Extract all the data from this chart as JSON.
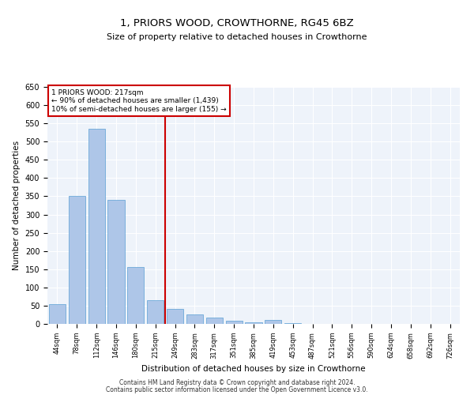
{
  "title1": "1, PRIORS WOOD, CROWTHORNE, RG45 6BZ",
  "title2": "Size of property relative to detached houses in Crowthorne",
  "xlabel": "Distribution of detached houses by size in Crowthorne",
  "ylabel": "Number of detached properties",
  "categories": [
    "44sqm",
    "78sqm",
    "112sqm",
    "146sqm",
    "180sqm",
    "215sqm",
    "249sqm",
    "283sqm",
    "317sqm",
    "351sqm",
    "385sqm",
    "419sqm",
    "453sqm",
    "487sqm",
    "521sqm",
    "556sqm",
    "590sqm",
    "624sqm",
    "658sqm",
    "692sqm",
    "726sqm"
  ],
  "values": [
    55,
    350,
    535,
    340,
    155,
    65,
    42,
    25,
    18,
    8,
    5,
    10,
    2,
    1,
    0,
    1,
    0,
    0,
    0,
    0,
    1
  ],
  "bar_color": "#aec6e8",
  "bar_edge_color": "#5a9fd4",
  "vline_x": 5.5,
  "vline_color": "#cc0000",
  "annotation_line1": "1 PRIORS WOOD: 217sqm",
  "annotation_line2": "← 90% of detached houses are smaller (1,439)",
  "annotation_line3": "10% of semi-detached houses are larger (155) →",
  "annotation_box_color": "#cc0000",
  "ylim": [
    0,
    650
  ],
  "yticks": [
    0,
    50,
    100,
    150,
    200,
    250,
    300,
    350,
    400,
    450,
    500,
    550,
    600,
    650
  ],
  "background_color": "#eef3fa",
  "grid_color": "#ffffff",
  "footer1": "Contains HM Land Registry data © Crown copyright and database right 2024.",
  "footer2": "Contains public sector information licensed under the Open Government Licence v3.0."
}
